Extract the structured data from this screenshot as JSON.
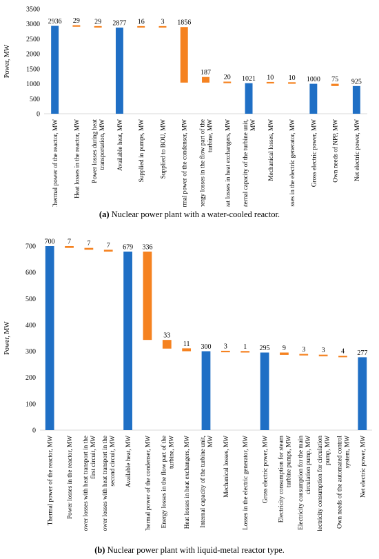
{
  "colors": {
    "total": "#1f6fc5",
    "loss": "#f58220"
  },
  "chart_data": [
    {
      "type": "bar",
      "caption_letter": "(a)",
      "caption_text": " Nuclear power plant with a water-cooled reactor.",
      "ylabel": "Power, MW",
      "ylim": [
        0,
        3500
      ],
      "yticks": [
        0,
        500,
        1000,
        1500,
        2000,
        2500,
        3000,
        3500
      ],
      "categories": [
        [
          "Thermal power of the reactor, MW"
        ],
        [
          "Heat losses in the reactor, MW"
        ],
        [
          "Power losses during heat",
          "transportation, MW"
        ],
        [
          "Available heat, MW"
        ],
        [
          "Supplied in pumps, MW"
        ],
        [
          "Supplied to BOU, MW"
        ],
        [
          "Thermal power of the condenser, MW"
        ],
        [
          "Energy losses in the flow part of the",
          "turbine, MW"
        ],
        [
          "Heat losses in heat exchangers, MW"
        ],
        [
          "Internal capacity of the turbine unit,",
          "MW"
        ],
        [
          "Mechanical losses, MW"
        ],
        [
          "Losses in the electric generator, MW"
        ],
        [
          "Gross electric power, MW"
        ],
        [
          "Own needs of NPP, MW"
        ],
        [
          "Net electric power, MW"
        ]
      ],
      "bars": [
        {
          "kind": "total",
          "start": 0,
          "end": 2936,
          "label": "2936"
        },
        {
          "kind": "loss",
          "start": 2907,
          "end": 2936,
          "label": "29"
        },
        {
          "kind": "loss",
          "start": 2878,
          "end": 2907,
          "label": "29"
        },
        {
          "kind": "total",
          "start": 0,
          "end": 2877,
          "label": "2877"
        },
        {
          "kind": "loss",
          "start": 2877,
          "end": 2893,
          "label": "16"
        },
        {
          "kind": "loss",
          "start": 2877,
          "end": 2880,
          "label": "3"
        },
        {
          "kind": "loss",
          "start": 1040,
          "end": 2896,
          "label": "1856"
        },
        {
          "kind": "loss",
          "start": 1040,
          "end": 1227,
          "label": "187"
        },
        {
          "kind": "loss",
          "start": 1021,
          "end": 1041,
          "label": "20"
        },
        {
          "kind": "total",
          "start": 0,
          "end": 1021,
          "label": "1021"
        },
        {
          "kind": "loss",
          "start": 1011,
          "end": 1021,
          "label": "10"
        },
        {
          "kind": "loss",
          "start": 1001,
          "end": 1011,
          "label": "10"
        },
        {
          "kind": "total",
          "start": 0,
          "end": 1000,
          "label": "1000"
        },
        {
          "kind": "loss",
          "start": 925,
          "end": 1000,
          "label": "75"
        },
        {
          "kind": "total",
          "start": 0,
          "end": 925,
          "label": "925"
        }
      ]
    },
    {
      "type": "bar",
      "caption_letter": "(b)",
      "caption_text": " Nuclear power plant with liquid-metal reactor type.",
      "ylabel": "Power, MW",
      "ylim": [
        0,
        700
      ],
      "yticks": [
        0,
        100,
        200,
        300,
        400,
        500,
        600,
        700
      ],
      "categories": [
        [
          "Thermal power of the reactor, MW"
        ],
        [
          "Power losses in the reactor, MW"
        ],
        [
          "Power losses with heat transport in the",
          "first circuit, MW"
        ],
        [
          "Power losses with heat transport in the",
          "second circuit, MW"
        ],
        [
          "Available heat, MW"
        ],
        [
          "Thermal power of the condenser, MW"
        ],
        [
          "Energy losses in the flow part of the",
          "turbine, MW"
        ],
        [
          "Heat losses in heat exchangers, MW"
        ],
        [
          "Internal capacity of the turbine unit,",
          "MW"
        ],
        [
          "Mechanical losses, MW"
        ],
        [
          "Losses in the electric generator, MW"
        ],
        [
          "Gross electric power, MW"
        ],
        [
          "Electricity consumption for steam",
          "turbine pumps, MW"
        ],
        [
          "Electricity consumption for the main",
          "circulation pump, MW"
        ],
        [
          "Electricity consumption for circulation",
          "pump, MW"
        ],
        [
          "Own needs of the automated control",
          "system, MW"
        ],
        [
          "Net electric power, MW"
        ]
      ],
      "bars": [
        {
          "kind": "total",
          "start": 0,
          "end": 700,
          "label": "700"
        },
        {
          "kind": "loss",
          "start": 693,
          "end": 700,
          "label": "7"
        },
        {
          "kind": "loss",
          "start": 686,
          "end": 693,
          "label": "7"
        },
        {
          "kind": "loss",
          "start": 679,
          "end": 686,
          "label": "7"
        },
        {
          "kind": "total",
          "start": 0,
          "end": 679,
          "label": "679"
        },
        {
          "kind": "loss",
          "start": 343,
          "end": 679,
          "label": "336"
        },
        {
          "kind": "loss",
          "start": 310,
          "end": 343,
          "label": "33"
        },
        {
          "kind": "loss",
          "start": 300,
          "end": 311,
          "label": "11"
        },
        {
          "kind": "total",
          "start": 0,
          "end": 300,
          "label": "300"
        },
        {
          "kind": "loss",
          "start": 296,
          "end": 299,
          "label": "3"
        },
        {
          "kind": "loss",
          "start": 295,
          "end": 296,
          "label": "1"
        },
        {
          "kind": "total",
          "start": 0,
          "end": 295,
          "label": "295"
        },
        {
          "kind": "loss",
          "start": 286,
          "end": 295,
          "label": "9"
        },
        {
          "kind": "loss",
          "start": 284,
          "end": 287,
          "label": "3"
        },
        {
          "kind": "loss",
          "start": 281,
          "end": 284,
          "label": "3"
        },
        {
          "kind": "loss",
          "start": 277,
          "end": 281,
          "label": "4"
        },
        {
          "kind": "total",
          "start": 0,
          "end": 277,
          "label": "277"
        }
      ]
    }
  ]
}
